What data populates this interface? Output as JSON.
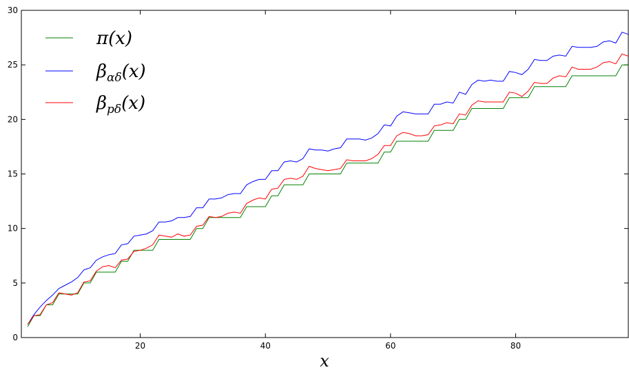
{
  "chart_data": {
    "type": "line",
    "title": "",
    "xlabel": "x",
    "ylabel": "",
    "xlim": [
      1,
      98
    ],
    "ylim": [
      0,
      30
    ],
    "xticks": [
      20,
      40,
      60,
      80
    ],
    "yticks": [
      0,
      5,
      10,
      15,
      20,
      25,
      30
    ],
    "grid": false,
    "legend": "top-left",
    "series": [
      {
        "name": "π(x)",
        "color": "#008000",
        "x": [
          2,
          3,
          4,
          5,
          6,
          7,
          8,
          9,
          10,
          11,
          12,
          13,
          14,
          15,
          16,
          17,
          18,
          19,
          20,
          21,
          22,
          23,
          24,
          25,
          26,
          27,
          28,
          29,
          30,
          31,
          32,
          33,
          34,
          35,
          36,
          37,
          38,
          39,
          40,
          41,
          42,
          43,
          44,
          45,
          46,
          47,
          48,
          49,
          50,
          51,
          52,
          53,
          54,
          55,
          56,
          57,
          58,
          59,
          60,
          61,
          62,
          63,
          64,
          65,
          66,
          67,
          68,
          69,
          70,
          71,
          72,
          73,
          74,
          75,
          76,
          77,
          78,
          79,
          80,
          81,
          82,
          83,
          84,
          85,
          86,
          87,
          88,
          89,
          90,
          91,
          92,
          93,
          94,
          95,
          96,
          97,
          98
        ],
        "y": [
          1,
          2,
          2,
          3,
          3,
          4,
          4,
          4,
          4,
          5,
          5,
          6,
          6,
          6,
          6,
          7,
          7,
          8,
          8,
          8,
          8,
          9,
          9,
          9,
          9,
          9,
          9,
          10,
          10,
          11,
          11,
          11,
          11,
          11,
          11,
          12,
          12,
          12,
          12,
          13,
          13,
          14,
          14,
          14,
          14,
          15,
          15,
          15,
          15,
          15,
          15,
          16,
          16,
          16,
          16,
          16,
          16,
          17,
          17,
          18,
          18,
          18,
          18,
          18,
          18,
          19,
          19,
          19,
          19,
          20,
          20,
          21,
          21,
          21,
          21,
          21,
          21,
          22,
          22,
          22,
          22,
          23,
          23,
          23,
          23,
          23,
          23,
          24,
          24,
          24,
          24,
          24,
          24,
          24,
          24,
          25,
          25
        ]
      },
      {
        "name": "β_{αδ}(x)",
        "color": "#0000ff",
        "x": [
          2,
          3,
          4,
          5,
          6,
          7,
          8,
          9,
          10,
          11,
          12,
          13,
          14,
          15,
          16,
          17,
          18,
          19,
          20,
          21,
          22,
          23,
          24,
          25,
          26,
          27,
          28,
          29,
          30,
          31,
          32,
          33,
          34,
          35,
          36,
          37,
          38,
          39,
          40,
          41,
          42,
          43,
          44,
          45,
          46,
          47,
          48,
          49,
          50,
          51,
          52,
          53,
          54,
          55,
          56,
          57,
          58,
          59,
          60,
          61,
          62,
          63,
          64,
          65,
          66,
          67,
          68,
          69,
          70,
          71,
          72,
          73,
          74,
          75,
          76,
          77,
          78,
          79,
          80,
          81,
          82,
          83,
          84,
          85,
          86,
          87,
          88,
          89,
          90,
          91,
          92,
          93,
          94,
          95,
          96,
          97,
          98
        ],
        "y": [
          1.2,
          2.1,
          2.8,
          3.4,
          3.9,
          4.5,
          4.8,
          5.1,
          5.5,
          6.2,
          6.4,
          7.1,
          7.4,
          7.6,
          7.7,
          8.5,
          8.6,
          9.3,
          9.4,
          9.5,
          9.8,
          10.6,
          10.6,
          10.7,
          11.0,
          11.0,
          11.1,
          11.9,
          11.9,
          12.7,
          12.7,
          12.8,
          13.1,
          13.2,
          13.2,
          14.0,
          14.3,
          14.5,
          14.5,
          15.3,
          15.3,
          16.1,
          16.2,
          16.1,
          16.4,
          17.3,
          17.2,
          17.2,
          17.1,
          17.3,
          17.4,
          18.2,
          18.2,
          18.2,
          18.1,
          18.3,
          18.7,
          19.5,
          19.4,
          20.3,
          20.7,
          20.6,
          20.5,
          20.5,
          20.5,
          21.4,
          21.4,
          21.6,
          21.5,
          22.5,
          22.3,
          23.2,
          23.6,
          23.5,
          23.6,
          23.5,
          23.5,
          24.4,
          24.3,
          24.1,
          24.6,
          25.5,
          25.4,
          25.4,
          25.8,
          25.9,
          25.8,
          26.7,
          26.6,
          26.6,
          26.6,
          26.7,
          27.1,
          27.2,
          27.0,
          28.0,
          27.8
        ]
      },
      {
        "name": "β_{pδ}(x)",
        "color": "#ff0000",
        "x": [
          2,
          3,
          4,
          5,
          6,
          7,
          8,
          9,
          10,
          11,
          12,
          13,
          14,
          15,
          16,
          17,
          18,
          19,
          20,
          21,
          22,
          23,
          24,
          25,
          26,
          27,
          28,
          29,
          30,
          31,
          32,
          33,
          34,
          35,
          36,
          37,
          38,
          39,
          40,
          41,
          42,
          43,
          44,
          45,
          46,
          47,
          48,
          49,
          50,
          51,
          52,
          53,
          54,
          55,
          56,
          57,
          58,
          59,
          60,
          61,
          62,
          63,
          64,
          65,
          66,
          67,
          68,
          69,
          70,
          71,
          72,
          73,
          74,
          75,
          76,
          77,
          78,
          79,
          80,
          81,
          82,
          83,
          84,
          85,
          86,
          87,
          88,
          89,
          90,
          91,
          92,
          93,
          94,
          95,
          96,
          97,
          98
        ],
        "y": [
          1.2,
          2.0,
          2.1,
          3.0,
          3.2,
          4.1,
          4.0,
          3.9,
          4.1,
          5.1,
          5.2,
          6.1,
          6.5,
          6.6,
          6.4,
          7.1,
          7.2,
          7.9,
          8.0,
          8.2,
          8.5,
          9.4,
          9.3,
          9.2,
          9.5,
          9.3,
          9.4,
          10.2,
          10.3,
          11.1,
          11.0,
          11.1,
          11.4,
          11.5,
          11.4,
          12.3,
          12.6,
          12.8,
          12.7,
          13.6,
          13.7,
          14.5,
          14.6,
          14.5,
          14.8,
          15.7,
          15.5,
          15.4,
          15.3,
          15.4,
          15.5,
          16.3,
          16.2,
          16.2,
          16.2,
          16.4,
          16.8,
          17.6,
          17.6,
          18.5,
          18.8,
          18.7,
          18.5,
          18.5,
          18.6,
          19.4,
          19.5,
          19.7,
          19.6,
          20.5,
          20.4,
          21.3,
          21.7,
          21.6,
          21.6,
          21.6,
          21.6,
          22.5,
          22.4,
          22.1,
          22.6,
          23.4,
          23.3,
          23.3,
          23.8,
          24.0,
          23.9,
          24.8,
          24.6,
          24.6,
          24.6,
          24.8,
          25.2,
          25.3,
          25.1,
          26.0,
          25.8
        ]
      }
    ]
  }
}
